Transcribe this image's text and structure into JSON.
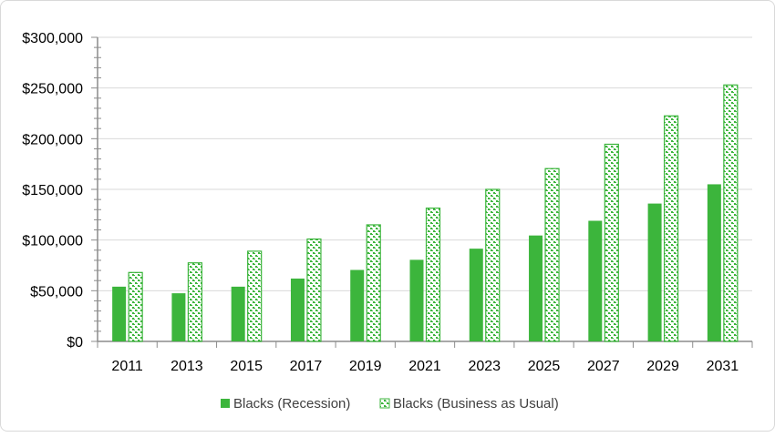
{
  "chart_data": {
    "type": "bar",
    "categories": [
      "2011",
      "2013",
      "2015",
      "2017",
      "2019",
      "2021",
      "2023",
      "2025",
      "2027",
      "2029",
      "2031"
    ],
    "series": [
      {
        "name": "Blacks (Recession)",
        "values": [
          54000,
          47500,
          54000,
          62000,
          70500,
          80500,
          91500,
          104500,
          119000,
          136000,
          155000
        ],
        "fill": "solid",
        "color": "#3cb53c"
      },
      {
        "name": "Blacks (Business as Usual)",
        "values": [
          68000,
          77500,
          89000,
          101000,
          115000,
          131500,
          150000,
          170500,
          194500,
          222500,
          253000
        ],
        "fill": "pattern",
        "color": "#3cb53c"
      }
    ],
    "y_ticks": [
      "$0",
      "$50,000",
      "$100,000",
      "$150,000",
      "$200,000",
      "$250,000",
      "$300,000"
    ],
    "ylim": [
      0,
      300000
    ],
    "grid": true,
    "legend_position": "bottom"
  }
}
